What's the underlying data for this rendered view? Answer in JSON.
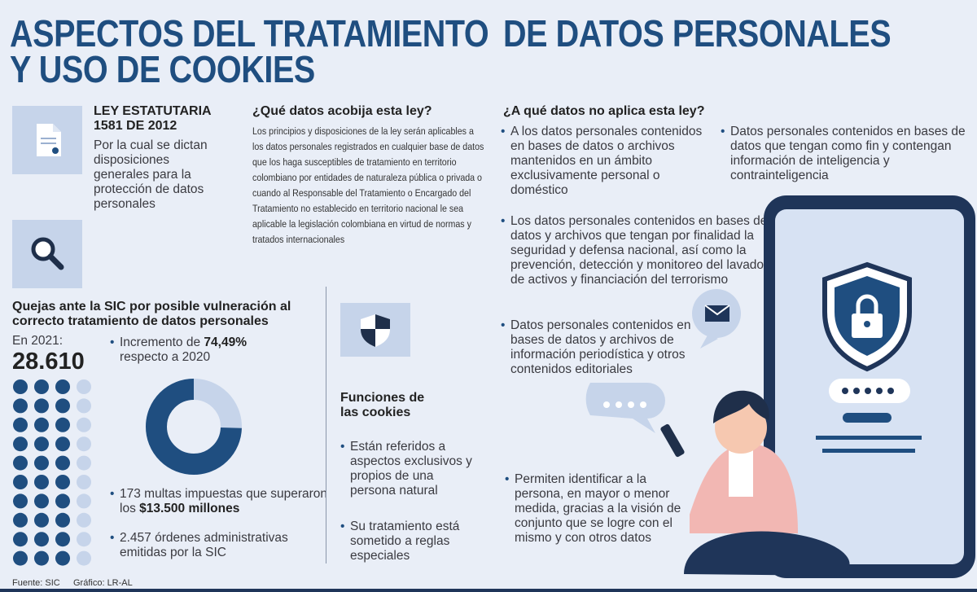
{
  "header": {
    "title_line1_left": "ASPECTOS DEL TRATAMIENTO",
    "title_line1_right": "DE DATOS PERSONALES",
    "title_line2": "Y USO DE COOKIES"
  },
  "law": {
    "name": "LEY ESTATUTARIA 1581 DE 2012",
    "description": "Por la cual se dictan disposiciones generales para la protección de datos personales"
  },
  "scope": {
    "heading": "¿Qué datos acobija esta ley?",
    "text": "Los principios y disposiciones de la ley serán aplicables a los datos personales registrados en cualquier base de datos que los haga susceptibles de tratamiento en territorio colombiano por entidades de naturaleza pública o privada o cuando al Responsable del Tratamiento o Encargado del Tratamiento no establecido en territorio nacional le sea aplicable la legislación colombiana en virtud de normas y tratados internacionales"
  },
  "complaints": {
    "heading": "Quejas ante la SIC por posible vulneración al correcto tratamiento de datos personales",
    "year_label": "En 2021:",
    "total": "28.610",
    "increase": {
      "before": "Incremento de ",
      "bold": "74,49%",
      "after": " respecto a 2020"
    },
    "fines": {
      "before": "173 multas impuestas que superaron los ",
      "bold": "$13.500 millones"
    },
    "orders": "2.457 órdenes administrativas emitidas por la SIC"
  },
  "cookies": {
    "heading": "Funciones de las cookies",
    "bullets": [
      "Están referidos a aspectos exclusivos y propios de una persona natural",
      "Su tratamiento está sometido a reglas especiales"
    ],
    "identify": "Permiten identificar a la persona, en mayor o menor medida, gracias a la visión de conjunto que se logre con el mismo y con otros datos"
  },
  "exclusions": {
    "heading": "¿A qué datos no aplica esta ley?",
    "bullets": [
      "A los datos personales contenidos en bases de datos o archivos mantenidos en un ámbito exclusivamente personal o doméstico",
      "Datos personales contenidos en bases de datos que tengan como fin y contengan información de inteligencia y contrainteligencia",
      "Los datos personales contenidos en bases de datos y archivos que tengan por finalidad la seguridad y defensa nacional, así como la prevención, detección y monitoreo del lavado de activos y financiación del terrorismo",
      "Datos personales contenidos en bases de datos y archivos de información periodística y otros contenidos editoriales"
    ]
  },
  "footer": {
    "source": "Fuente: SIC",
    "credit": "Gráfico: LR-AL"
  }
}
